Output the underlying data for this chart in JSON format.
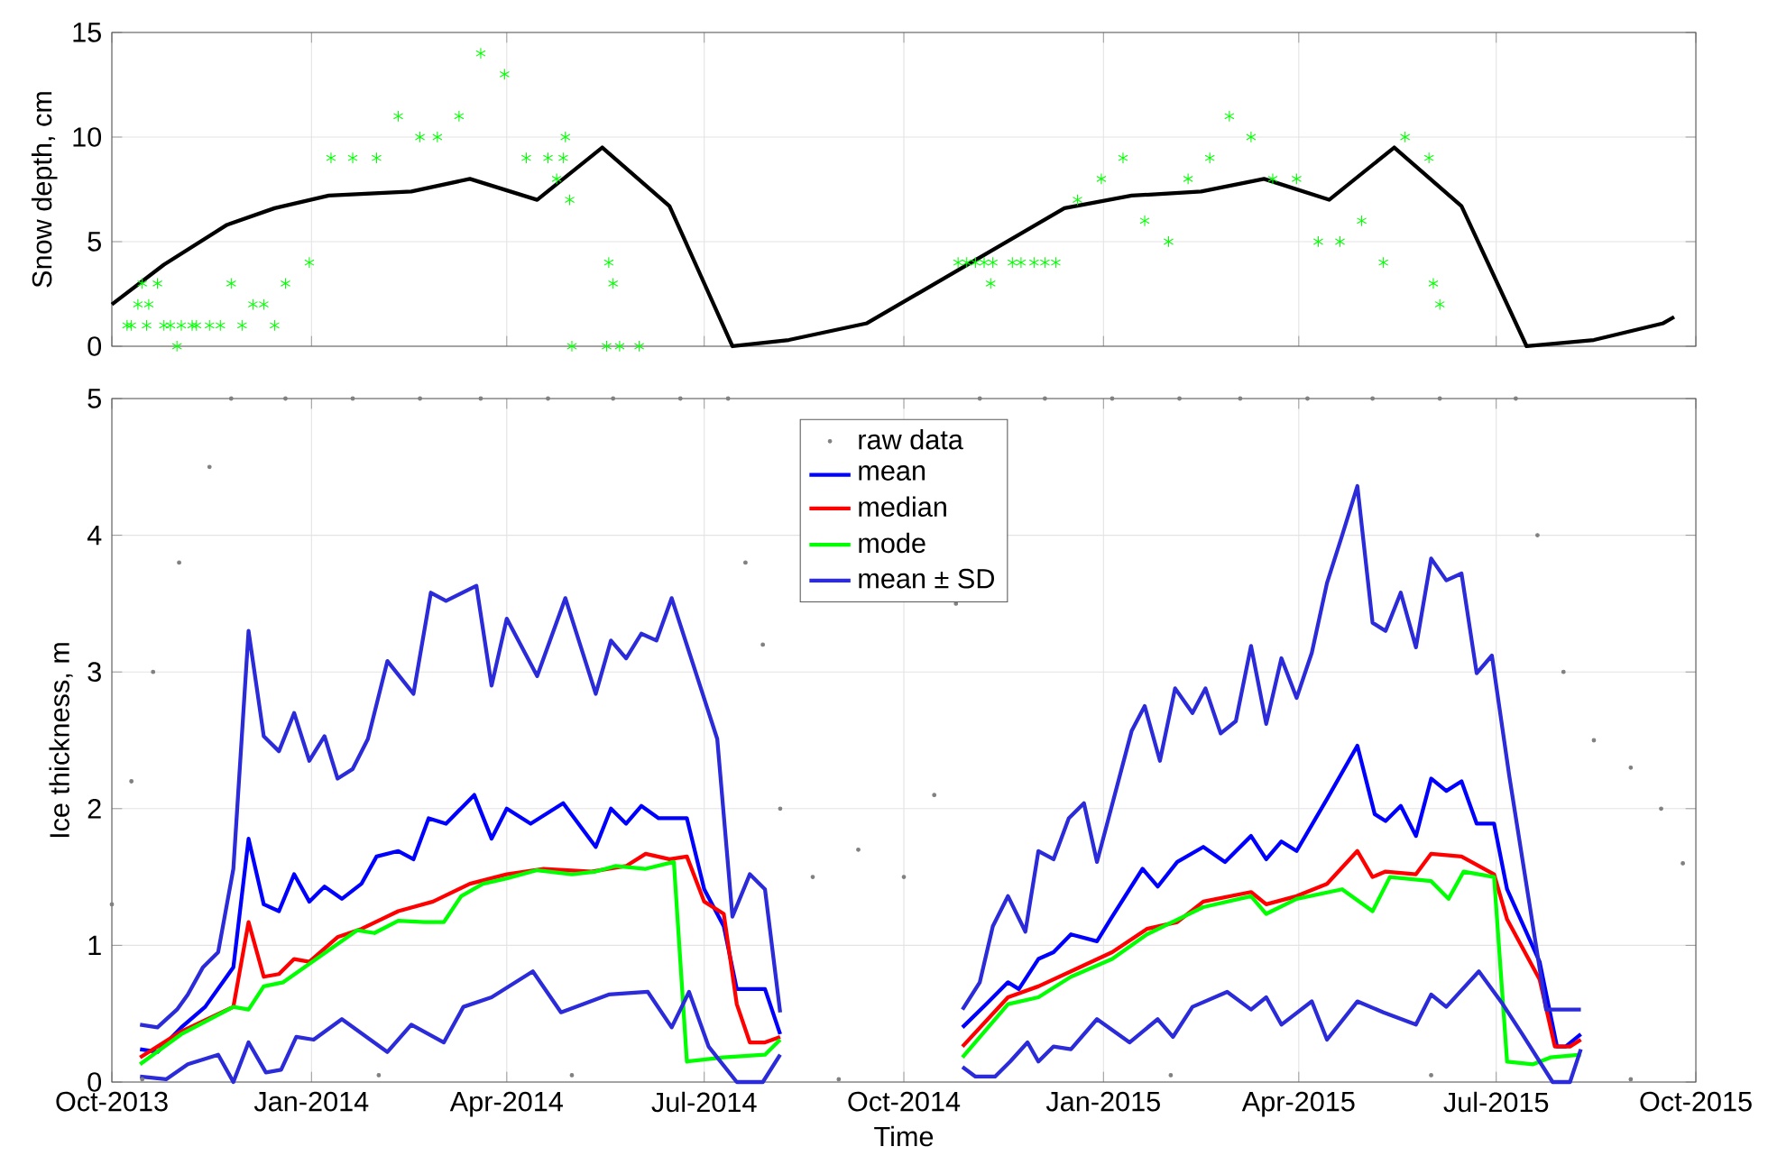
{
  "chart_data": [
    {
      "type": "line",
      "ylabel": "Snow depth, cm",
      "xlim": [
        "2013-10-01",
        "2015-10-01"
      ],
      "ylim": [
        0,
        15
      ],
      "yticks": [
        0,
        5,
        10,
        15
      ],
      "xticks": [
        {
          "value": "2013-10-01",
          "label": null
        },
        {
          "value": "2014-01-01",
          "label": null
        },
        {
          "value": "2014-04-01",
          "label": null
        },
        {
          "value": "2014-07-01",
          "label": null
        },
        {
          "value": "2014-10-01",
          "label": null
        },
        {
          "value": "2015-01-01",
          "label": null
        },
        {
          "value": "2015-04-01",
          "label": null
        },
        {
          "value": "2015-07-01",
          "label": null
        },
        {
          "value": "2015-10-01",
          "label": null
        }
      ],
      "tick_labels": "y",
      "grid": true,
      "series": [
        {
          "type": "scatter",
          "marker": "cross",
          "color": "#00ff00",
          "x": [
            "2013-10-08",
            "2013-10-10",
            "2013-10-13",
            "2013-10-15",
            "2013-10-17",
            "2013-10-18",
            "2013-10-22",
            "2013-10-25",
            "2013-10-28",
            "2013-10-31",
            "2013-11-02",
            "2013-11-07",
            "2013-11-09",
            "2013-11-15",
            "2013-11-20",
            "2013-11-25",
            "2013-11-30",
            "2013-12-05",
            "2013-12-10",
            "2013-12-15",
            "2013-12-20",
            "2013-12-31",
            "2014-01-10",
            "2014-01-20",
            "2014-01-31",
            "2014-02-10",
            "2014-02-20",
            "2014-02-28",
            "2014-03-10",
            "2014-03-20",
            "2014-03-31",
            "2014-04-10",
            "2014-04-20",
            "2014-04-24",
            "2014-04-27",
            "2014-04-28",
            "2014-04-30",
            "2014-05-01",
            "2014-05-17",
            "2014-05-18",
            "2014-05-20",
            "2014-05-23",
            "2014-06-01",
            "2014-10-26",
            "2014-10-30",
            "2014-11-03",
            "2014-11-07",
            "2014-11-10",
            "2014-11-11",
            "2014-11-20",
            "2014-11-24",
            "2014-11-30",
            "2014-12-05",
            "2014-12-10",
            "2014-12-20",
            "2014-12-31",
            "2015-01-10",
            "2015-01-20",
            "2015-01-31",
            "2015-02-09",
            "2015-02-19",
            "2015-02-28",
            "2015-03-10",
            "2015-03-20",
            "2015-03-31",
            "2015-04-10",
            "2015-04-20",
            "2015-04-30",
            "2015-05-10",
            "2015-05-20",
            "2015-05-31",
            "2015-06-02",
            "2015-06-05"
          ],
          "values": [
            1,
            1,
            2,
            3,
            1,
            2,
            3,
            1,
            1,
            0,
            1,
            1,
            1,
            1,
            1,
            3,
            1,
            2,
            2,
            1,
            3,
            4,
            9,
            9,
            9,
            11,
            10,
            10,
            11,
            14,
            13,
            9,
            9,
            8,
            9,
            10,
            7,
            0,
            0,
            4,
            3,
            0,
            0,
            4,
            4,
            4,
            4,
            3,
            4,
            4,
            4,
            4,
            4,
            4,
            7,
            8,
            9,
            6,
            5,
            8,
            9,
            11,
            10,
            8,
            8,
            5,
            5,
            6,
            4,
            10,
            9,
            3,
            2
          ]
        },
        {
          "type": "line",
          "color": "#000000",
          "x": [
            "2013-10-01",
            "2013-10-25",
            "2013-11-23",
            "2013-12-15",
            "2014-01-09",
            "2014-02-16",
            "2014-03-15",
            "2014-04-15",
            "2014-05-15",
            "2014-06-15",
            "2014-07-14",
            "2014-08-09",
            "2014-09-14",
            "2014-12-14",
            "2015-01-14",
            "2015-02-15",
            "2015-03-16",
            "2015-04-15",
            "2015-05-15",
            "2015-06-15",
            "2015-07-15",
            "2015-08-15",
            "2015-09-16",
            "2015-09-21"
          ],
          "values": [
            2.0,
            3.9,
            5.8,
            6.6,
            7.2,
            7.4,
            8.0,
            7.0,
            9.5,
            6.7,
            0,
            0.3,
            1.1,
            6.6,
            7.2,
            7.4,
            8.0,
            7.0,
            9.5,
            6.7,
            0,
            0.3,
            1.1,
            1.4
          ]
        }
      ]
    },
    {
      "type": "line",
      "xlabel": "Time",
      "ylabel": "Ice thickness, m",
      "xlim": [
        "2013-10-01",
        "2015-10-01"
      ],
      "ylim": [
        0,
        5
      ],
      "yticks": [
        0,
        1,
        2,
        3,
        4,
        5
      ],
      "xticks": [
        {
          "value": "2013-10-01",
          "label": "Oct-2013"
        },
        {
          "value": "2014-01-01",
          "label": "Jan-2014"
        },
        {
          "value": "2014-04-01",
          "label": "Apr-2014"
        },
        {
          "value": "2014-07-01",
          "label": "Jul-2014"
        },
        {
          "value": "2014-10-01",
          "label": "Oct-2014"
        },
        {
          "value": "2015-01-01",
          "label": "Jan-2015"
        },
        {
          "value": "2015-04-01",
          "label": "Apr-2015"
        },
        {
          "value": "2015-07-01",
          "label": "Jul-2015"
        },
        {
          "value": "2015-10-01",
          "label": "Oct-2015"
        }
      ],
      "grid": true,
      "legend": "top",
      "series": [
        {
          "name": "raw data",
          "type": "scatter",
          "marker": "circle",
          "color": "#808080",
          "x": [
            "2013-10-01",
            "2013-10-10",
            "2013-10-15",
            "2013-10-20",
            "2013-11-01",
            "2013-11-15",
            "2013-11-25",
            "2013-12-20",
            "2014-01-20",
            "2014-02-01",
            "2014-02-20",
            "2014-03-20",
            "2014-04-20",
            "2014-05-01",
            "2014-05-20",
            "2014-06-20",
            "2014-07-12",
            "2014-07-20",
            "2014-07-28",
            "2014-08-05",
            "2014-08-20",
            "2014-09-01",
            "2014-09-10",
            "2014-10-01",
            "2014-10-15",
            "2014-10-25",
            "2014-11-05",
            "2014-12-05",
            "2015-01-05",
            "2015-02-01",
            "2015-02-05",
            "2015-03-05",
            "2015-04-05",
            "2015-05-05",
            "2015-06-01",
            "2015-06-05",
            "2015-07-10",
            "2015-07-20",
            "2015-08-01",
            "2015-08-15",
            "2015-09-01",
            "2015-09-01",
            "2015-09-15",
            "2015-09-25"
          ],
          "values": [
            1.3,
            2.2,
            0.02,
            3.0,
            3.8,
            4.5,
            5,
            5,
            5,
            0.05,
            5,
            5,
            5,
            0.05,
            5,
            5,
            5,
            3.8,
            3.2,
            2.0,
            1.5,
            0.02,
            1.7,
            1.5,
            2.1,
            3.5,
            5,
            5,
            5,
            0.05,
            5,
            5,
            5,
            5,
            0.05,
            5,
            5,
            4.0,
            3.0,
            2.5,
            2.3,
            0.02,
            2.0,
            1.6
          ]
        },
        {
          "name": "mean",
          "color": "#0000ff",
          "x": [
            "2013-10-14",
            "2013-10-22",
            "2013-11-02",
            "2013-11-13",
            "2013-11-26",
            "2013-12-03",
            "2013-12-10",
            "2013-12-17",
            "2013-12-24",
            "2013-12-31",
            "2014-01-07",
            "2014-01-15",
            "2014-01-24",
            "2014-01-31",
            "2014-02-10",
            "2014-02-17",
            "2014-02-24",
            "2014-03-04",
            "2014-03-17",
            "2014-03-25",
            "2014-04-01",
            "2014-04-12",
            "2014-04-27",
            "2014-05-12",
            "2014-05-19",
            "2014-05-26",
            "2014-06-02",
            "2014-06-10",
            "2014-06-23",
            "2014-07-01",
            "2014-07-10",
            "2014-07-16",
            "2014-07-29",
            "2014-08-05",
            "2014-09-01",
            "2014-10-28",
            "2014-11-08",
            "2014-11-18",
            "2014-11-23",
            "2014-12-02",
            "2014-12-09",
            "2014-12-17",
            "2014-12-29",
            "2015-01-05",
            "2015-01-19",
            "2015-01-26",
            "2015-02-04",
            "2015-02-16",
            "2015-02-26",
            "2015-03-10",
            "2015-03-17",
            "2015-03-24",
            "2015-03-31",
            "2015-04-14",
            "2015-04-28",
            "2015-05-06",
            "2015-05-11",
            "2015-05-18",
            "2015-05-25",
            "2015-06-01",
            "2015-06-08",
            "2015-06-15",
            "2015-06-22",
            "2015-06-30",
            "2015-07-06",
            "2015-07-21",
            "2015-07-29",
            "2015-08-02",
            "2015-08-09"
          ],
          "values": [
            0.24,
            0.22,
            0.4,
            0.55,
            0.84,
            1.78,
            1.3,
            1.25,
            1.52,
            1.32,
            1.43,
            1.34,
            1.45,
            1.65,
            1.69,
            1.63,
            1.93,
            1.89,
            2.1,
            1.78,
            2.0,
            1.89,
            2.04,
            1.72,
            2.0,
            1.89,
            2.02,
            1.93,
            1.93,
            1.41,
            1.14,
            0.68,
            0.68,
            0.35,
            null,
            0.4,
            0.57,
            0.73,
            0.68,
            0.9,
            0.95,
            1.08,
            1.03,
            1.21,
            1.56,
            1.43,
            1.61,
            1.72,
            1.61,
            1.8,
            1.63,
            1.76,
            1.69,
            2.07,
            2.46,
            1.96,
            1.91,
            2.02,
            1.8,
            2.22,
            2.13,
            2.2,
            1.89,
            1.89,
            1.41,
            0.88,
            0.26,
            0.26,
            0.35
          ]
        },
        {
          "name": "median",
          "color": "#ff0000",
          "x": [
            "2013-10-14",
            "2013-11-02",
            "2013-11-26",
            "2013-12-03",
            "2013-12-10",
            "2013-12-17",
            "2013-12-24",
            "2013-12-31",
            "2014-01-13",
            "2014-01-24",
            "2014-02-10",
            "2014-02-26",
            "2014-03-15",
            "2014-04-01",
            "2014-04-18",
            "2014-05-10",
            "2014-05-26",
            "2014-06-04",
            "2014-06-15",
            "2014-06-23",
            "2014-07-01",
            "2014-07-10",
            "2014-07-16",
            "2014-07-22",
            "2014-07-29",
            "2014-08-05",
            "2014-09-01",
            "2014-10-28",
            "2014-11-18",
            "2014-12-02",
            "2014-12-17",
            "2015-01-05",
            "2015-01-21",
            "2015-02-04",
            "2015-02-16",
            "2015-03-10",
            "2015-03-17",
            "2015-03-31",
            "2015-04-14",
            "2015-04-28",
            "2015-05-05",
            "2015-05-11",
            "2015-05-25",
            "2015-06-01",
            "2015-06-15",
            "2015-06-30",
            "2015-07-06",
            "2015-07-21",
            "2015-07-28",
            "2015-08-04",
            "2015-08-09"
          ],
          "values": [
            0.18,
            0.37,
            0.55,
            1.17,
            0.77,
            0.79,
            0.9,
            0.88,
            1.06,
            1.12,
            1.25,
            1.32,
            1.45,
            1.52,
            1.56,
            1.54,
            1.58,
            1.67,
            1.63,
            1.65,
            1.32,
            1.23,
            0.57,
            0.29,
            0.29,
            0.33,
            null,
            0.26,
            0.62,
            0.7,
            0.81,
            0.95,
            1.12,
            1.17,
            1.32,
            1.39,
            1.3,
            1.36,
            1.45,
            1.69,
            1.5,
            1.54,
            1.52,
            1.67,
            1.65,
            1.52,
            1.19,
            0.75,
            0.26,
            0.26,
            0.31
          ]
        },
        {
          "name": "mode",
          "color": "#00ff00",
          "x": [
            "2013-10-14",
            "2013-11-02",
            "2013-11-26",
            "2013-12-03",
            "2013-12-10",
            "2013-12-19",
            "2014-01-05",
            "2014-01-22",
            "2014-01-30",
            "2014-02-10",
            "2014-02-22",
            "2014-03-03",
            "2014-03-11",
            "2014-03-21",
            "2014-04-01",
            "2014-04-15",
            "2014-05-01",
            "2014-05-12",
            "2014-05-21",
            "2014-06-04",
            "2014-06-17",
            "2014-06-23",
            "2014-07-10",
            "2014-07-29",
            "2014-08-05",
            "2014-09-01",
            "2014-10-28",
            "2014-11-18",
            "2014-12-02",
            "2014-12-17",
            "2015-01-05",
            "2015-01-21",
            "2015-02-16",
            "2015-03-10",
            "2015-03-17",
            "2015-03-31",
            "2015-04-21",
            "2015-05-05",
            "2015-05-13",
            "2015-06-01",
            "2015-06-09",
            "2015-06-16",
            "2015-06-30",
            "2015-07-06",
            "2015-07-18",
            "2015-07-26",
            "2015-08-09"
          ],
          "values": [
            0.13,
            0.35,
            0.55,
            0.53,
            0.7,
            0.73,
            0.92,
            1.11,
            1.09,
            1.18,
            1.17,
            1.17,
            1.36,
            1.45,
            1.49,
            1.55,
            1.52,
            1.54,
            1.58,
            1.56,
            1.61,
            0.15,
            0.18,
            0.2,
            0.31,
            null,
            0.18,
            0.57,
            0.62,
            0.77,
            0.9,
            1.08,
            1.28,
            1.36,
            1.23,
            1.34,
            1.41,
            1.25,
            1.5,
            1.47,
            1.34,
            1.54,
            1.5,
            0.15,
            0.13,
            0.18,
            0.2
          ]
        },
        {
          "name": "mean ± SD",
          "color": "#2b2bd9",
          "x": [
            "2013-10-14",
            "2013-10-22",
            "2013-10-31",
            "2013-11-05",
            "2013-11-12",
            "2013-11-19",
            "2013-11-26",
            "2013-12-03",
            "2013-12-10",
            "2013-12-17",
            "2013-12-24",
            "2013-12-31",
            "2014-01-07",
            "2014-01-13",
            "2014-01-20",
            "2014-01-27",
            "2014-02-05",
            "2014-02-17",
            "2014-02-25",
            "2014-03-04",
            "2014-03-18",
            "2014-03-25",
            "2014-04-01",
            "2014-04-15",
            "2014-04-28",
            "2014-05-12",
            "2014-05-19",
            "2014-05-26",
            "2014-06-02",
            "2014-06-09",
            "2014-06-16",
            "2014-07-07",
            "2014-07-14",
            "2014-07-22",
            "2014-07-29",
            "2014-08-05",
            "2014-09-01",
            "2014-10-28",
            "2014-11-05",
            "2014-11-11",
            "2014-11-18",
            "2014-11-26",
            "2014-12-02",
            "2014-12-09",
            "2014-12-16",
            "2014-12-23",
            "2014-12-29",
            "2015-01-14",
            "2015-01-20",
            "2015-01-27",
            "2015-02-03",
            "2015-02-11",
            "2015-02-17",
            "2015-02-24",
            "2015-03-03",
            "2015-03-10",
            "2015-03-17",
            "2015-03-24",
            "2015-03-31",
            "2015-04-07",
            "2015-04-14",
            "2015-04-21",
            "2015-04-28",
            "2015-05-05",
            "2015-05-11",
            "2015-05-18",
            "2015-05-25",
            "2015-06-01",
            "2015-06-08",
            "2015-06-15",
            "2015-06-22",
            "2015-06-29",
            "2015-07-07",
            "2015-07-24",
            "2015-08-09"
          ],
          "values": [
            0.42,
            0.4,
            0.53,
            0.64,
            0.84,
            0.95,
            1.56,
            3.3,
            2.53,
            2.42,
            2.7,
            2.35,
            2.53,
            2.22,
            2.29,
            2.51,
            3.08,
            2.84,
            3.58,
            3.52,
            3.63,
            2.9,
            3.39,
            2.97,
            3.54,
            2.84,
            3.23,
            3.1,
            3.28,
            3.23,
            3.54,
            2.51,
            1.21,
            1.52,
            1.41,
            0.51,
            null,
            0.53,
            0.73,
            1.14,
            1.36,
            1.1,
            1.69,
            1.63,
            1.93,
            2.04,
            1.61,
            2.57,
            2.75,
            2.35,
            2.88,
            2.7,
            2.88,
            2.55,
            2.64,
            3.19,
            2.62,
            3.1,
            2.81,
            3.14,
            3.65,
            4.0,
            4.36,
            3.36,
            3.3,
            3.58,
            3.18,
            3.83,
            3.67,
            3.72,
            2.99,
            3.12,
            2.24,
            0.53,
            0.53
          ]
        },
        {
          "color": "#2b2bd9",
          "x": [
            "2013-10-14",
            "2013-10-26",
            "2013-11-05",
            "2013-11-19",
            "2013-11-26",
            "2013-12-03",
            "2013-12-11",
            "2013-12-18",
            "2013-12-25",
            "2014-01-02",
            "2014-01-15",
            "2014-02-05",
            "2014-02-16",
            "2014-03-03",
            "2014-03-12",
            "2014-03-25",
            "2014-04-13",
            "2014-04-26",
            "2014-05-18",
            "2014-06-05",
            "2014-06-16",
            "2014-06-24",
            "2014-07-03",
            "2014-07-16",
            "2014-07-28",
            "2014-08-05",
            "2014-09-01",
            "2014-10-28",
            "2014-11-03",
            "2014-11-12",
            "2014-11-19",
            "2014-11-27",
            "2014-12-02",
            "2014-12-09",
            "2014-12-17",
            "2014-12-29",
            "2015-01-13",
            "2015-01-26",
            "2015-02-02",
            "2015-02-11",
            "2015-02-27",
            "2015-03-10",
            "2015-03-17",
            "2015-03-24",
            "2015-04-07",
            "2015-04-14",
            "2015-04-28",
            "2015-05-10",
            "2015-05-25",
            "2015-06-01",
            "2015-06-08",
            "2015-06-23",
            "2015-07-04",
            "2015-07-13",
            "2015-07-27",
            "2015-08-04",
            "2015-08-09"
          ],
          "values": [
            0.04,
            0.02,
            0.13,
            0.2,
            0,
            0.29,
            0.07,
            0.09,
            0.33,
            0.31,
            0.46,
            0.22,
            0.42,
            0.29,
            0.55,
            0.62,
            0.81,
            0.51,
            0.64,
            0.66,
            0.4,
            0.66,
            0.26,
            0,
            0,
            0.2,
            null,
            0.11,
            0.04,
            0.04,
            0.15,
            0.29,
            0.15,
            0.26,
            0.24,
            0.46,
            0.29,
            0.46,
            0.33,
            0.55,
            0.66,
            0.53,
            0.62,
            0.42,
            0.59,
            0.31,
            0.59,
            0.51,
            0.42,
            0.64,
            0.55,
            0.81,
            0.57,
            0.35,
            0,
            0,
            0.24
          ]
        }
      ]
    }
  ]
}
